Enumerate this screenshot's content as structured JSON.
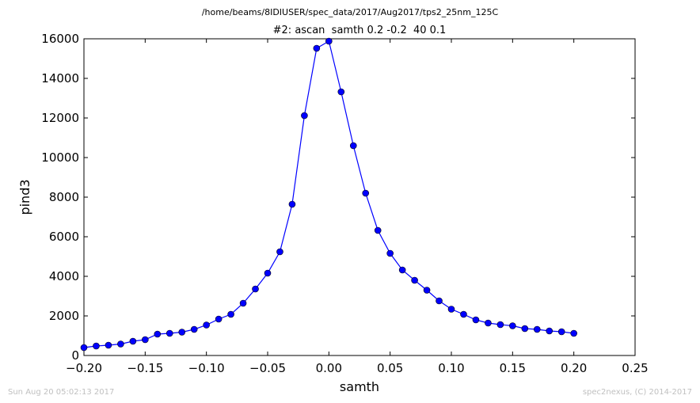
{
  "suptitle": "/home/beams/8IDIUSER/spec_data/2017/Aug2017/tps2_25nm_125C",
  "footer": {
    "left": "Sun Aug 20 05:02:13 2017",
    "right": "spec2nexus, (C) 2014-2017"
  },
  "chart_data": {
    "type": "line",
    "title": "#2: ascan  samth 0.2 -0.2  40 0.1",
    "xlabel": "samth",
    "ylabel": "pind3",
    "xlim": [
      -0.2,
      0.25
    ],
    "ylim": [
      0,
      16000
    ],
    "xticks": [
      "−0.20",
      "−0.15",
      "−0.10",
      "−0.05",
      "0.00",
      "0.05",
      "0.10",
      "0.15",
      "0.20",
      "0.25"
    ],
    "yticks": [
      "0",
      "2000",
      "4000",
      "6000",
      "8000",
      "10000",
      "12000",
      "14000",
      "16000"
    ],
    "grid": false,
    "line_color": "#0000ff",
    "marker": "circle",
    "x": [
      -0.2,
      -0.19,
      -0.18,
      -0.17,
      -0.16,
      -0.15,
      -0.14,
      -0.13,
      -0.12,
      -0.11,
      -0.1,
      -0.09,
      -0.08,
      -0.07,
      -0.06,
      -0.05,
      -0.04,
      -0.03,
      -0.02,
      -0.01,
      0.0,
      0.01,
      0.02,
      0.03,
      0.04,
      0.05,
      0.06,
      0.07,
      0.08,
      0.09,
      0.1,
      0.11,
      0.12,
      0.13,
      0.14,
      0.15,
      0.16,
      0.17,
      0.18,
      0.19,
      0.2
    ],
    "y": [
      400,
      480,
      520,
      580,
      720,
      800,
      1080,
      1120,
      1180,
      1320,
      1540,
      1840,
      2080,
      2640,
      3360,
      4160,
      5240,
      7640,
      12120,
      15520,
      15880,
      13320,
      10600,
      8200,
      6320,
      5160,
      4320,
      3800,
      3300,
      2760,
      2340,
      2080,
      1800,
      1640,
      1560,
      1500,
      1360,
      1320,
      1240,
      1200,
      1120
    ]
  }
}
